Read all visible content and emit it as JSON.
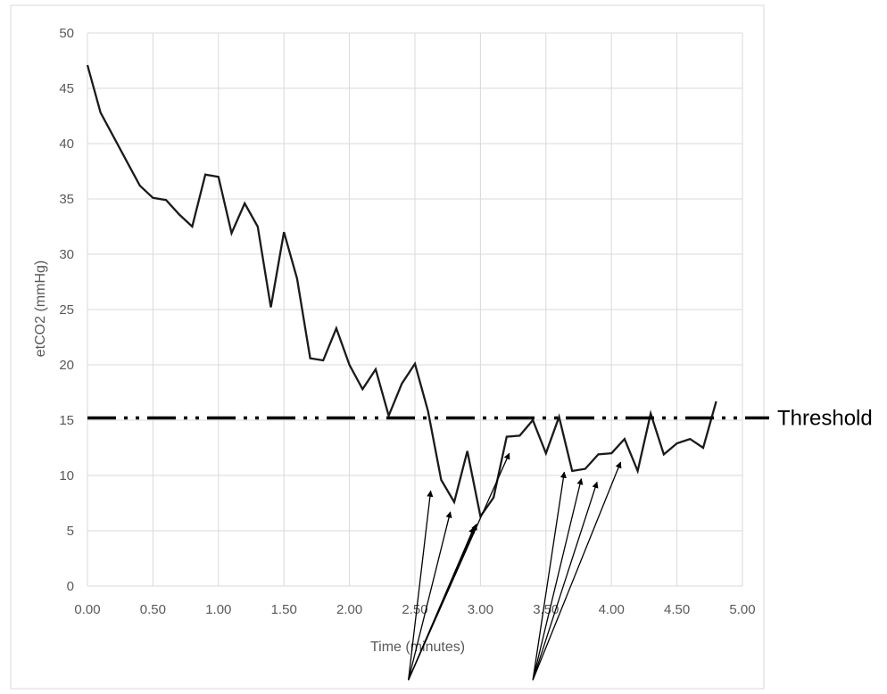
{
  "chart_data": {
    "type": "line",
    "title": "",
    "xlabel": "Time (minutes)",
    "ylabel": "etCO2 (mmHg)",
    "xlim": [
      0,
      5
    ],
    "ylim": [
      0,
      50
    ],
    "x_ticks": [
      "0.00",
      "0.50",
      "1.00",
      "1.50",
      "2.00",
      "2.50",
      "3.00",
      "3.50",
      "4.00",
      "4.50",
      "5.00"
    ],
    "y_ticks": [
      "0",
      "5",
      "10",
      "15",
      "20",
      "25",
      "30",
      "35",
      "40",
      "45",
      "50"
    ],
    "grid": true,
    "series": [
      {
        "color": "#1a1a1a",
        "x": [
          0.0,
          0.1,
          0.2,
          0.3,
          0.4,
          0.5,
          0.6,
          0.7,
          0.8,
          0.9,
          1.0,
          1.1,
          1.2,
          1.3,
          1.4,
          1.5,
          1.6,
          1.7,
          1.8,
          1.9,
          2.0,
          2.1,
          2.2,
          2.3,
          2.4,
          2.5,
          2.6,
          2.7,
          2.8,
          2.9,
          3.0,
          3.1,
          3.2,
          3.3,
          3.4,
          3.5,
          3.6,
          3.7,
          3.8,
          3.9,
          4.0,
          4.1,
          4.2,
          4.3,
          4.4,
          4.5,
          4.6,
          4.7,
          4.8
        ],
        "y": [
          47.1,
          42.8,
          40.6,
          38.4,
          36.2,
          35.1,
          34.9,
          33.6,
          32.5,
          37.2,
          37.0,
          31.9,
          34.6,
          32.5,
          25.2,
          32.0,
          27.8,
          20.6,
          20.4,
          23.3,
          20.0,
          17.8,
          19.6,
          15.4,
          18.3,
          20.1,
          15.8,
          9.6,
          7.6,
          12.2,
          6.3,
          8.0,
          13.5,
          13.6,
          15.0,
          12.0,
          15.3,
          10.4,
          10.6,
          11.9,
          12.0,
          13.3,
          10.4,
          15.6,
          11.9,
          12.9,
          13.3,
          12.5,
          16.7
        ]
      }
    ],
    "threshold": {
      "value": 15.2,
      "label": "Threshold",
      "color": "#000000"
    },
    "annotation_arrows": {
      "color": "#000000",
      "groups": [
        {
          "origin": [
            2.45,
            -8.5
          ],
          "targets": [
            [
              2.62,
              8.6
            ],
            [
              2.77,
              6.7
            ],
            [
              2.95,
              5.3
            ],
            [
              2.97,
              5.6
            ],
            [
              3.22,
              12.0
            ]
          ]
        },
        {
          "origin": [
            3.4,
            -8.5
          ],
          "targets": [
            [
              3.64,
              10.3
            ],
            [
              3.77,
              9.7
            ],
            [
              3.89,
              9.4
            ],
            [
              4.07,
              11.2
            ]
          ]
        }
      ]
    }
  }
}
